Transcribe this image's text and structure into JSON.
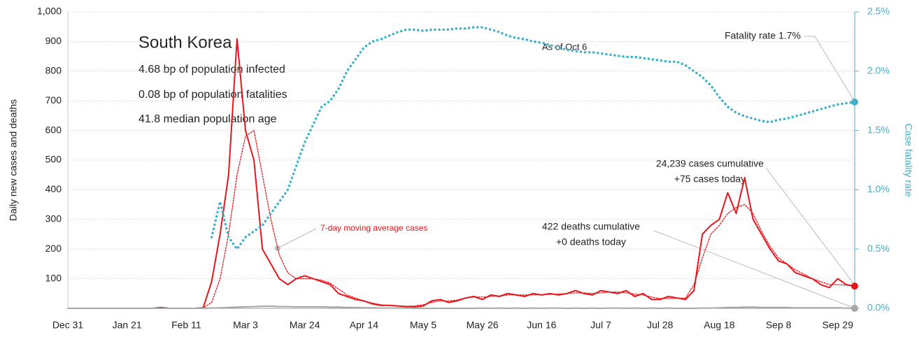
{
  "chart_data": {
    "type": "line",
    "title": "South Korea",
    "subtitle": [
      "4.68 bp of population infected",
      "0.08 bp of population fatalities",
      "41.8 median population age"
    ],
    "note": "As of Oct 6",
    "annotations": [
      "Fatality rate 1.7%",
      "24,239 cases cumulative",
      "+75 cases today",
      "422 deaths cumulative",
      "+0 deaths today"
    ],
    "ylabel": "Daily new cases and deaths",
    "y2label": "Case fatality rate",
    "categories": [
      "Dec 31",
      null,
      null,
      null,
      null,
      null,
      null,
      "Jan 21",
      null,
      null,
      null,
      null,
      null,
      null,
      "Feb 11",
      null,
      null,
      null,
      null,
      null,
      null,
      "Mar 3",
      null,
      null,
      null,
      null,
      null,
      null,
      "Mar 24",
      null,
      null,
      null,
      null,
      null,
      null,
      "Apr 14",
      null,
      null,
      null,
      null,
      null,
      null,
      "May 5",
      null,
      null,
      null,
      null,
      null,
      null,
      "May 26",
      null,
      null,
      null,
      null,
      null,
      null,
      "Jun 16",
      null,
      null,
      null,
      null,
      null,
      null,
      "Jul 7",
      null,
      null,
      null,
      null,
      null,
      null,
      "Jul 28",
      null,
      null,
      null,
      null,
      null,
      null,
      "Aug 18",
      null,
      null,
      null,
      null,
      null,
      null,
      "Sep 8",
      null,
      null,
      null,
      null,
      null,
      null,
      "Sep 29",
      null,
      null
    ],
    "series": [
      {
        "color": "#e8141b",
        "style": "solid",
        "values": [
          0,
          0,
          0,
          0,
          0,
          0,
          0,
          0,
          0,
          0,
          0,
          3,
          0,
          0,
          0,
          0,
          2,
          90,
          250,
          450,
          909,
          600,
          500,
          200,
          150,
          100,
          80,
          100,
          110,
          100,
          90,
          80,
          50,
          40,
          30,
          25,
          15,
          10,
          10,
          8,
          6,
          5,
          8,
          25,
          30,
          20,
          25,
          35,
          40,
          30,
          45,
          40,
          50,
          45,
          40,
          50,
          45,
          50,
          45,
          50,
          60,
          50,
          45,
          60,
          55,
          50,
          60,
          40,
          50,
          30,
          30,
          40,
          35,
          30,
          60,
          250,
          280,
          300,
          390,
          320,
          440,
          300,
          250,
          200,
          160,
          150,
          120,
          110,
          100,
          80,
          70,
          100,
          80,
          75
        ]
      },
      {
        "name": "7-day moving average cases",
        "color": "#e8141b",
        "style": "dotted",
        "values": [
          0,
          0,
          0,
          0,
          0,
          0,
          0,
          0,
          0,
          0,
          0,
          1,
          1,
          1,
          0,
          0,
          1,
          20,
          100,
          250,
          450,
          580,
          600,
          450,
          300,
          180,
          120,
          100,
          100,
          100,
          95,
          85,
          65,
          45,
          35,
          25,
          18,
          12,
          10,
          8,
          7,
          8,
          12,
          20,
          25,
          25,
          28,
          35,
          38,
          38,
          40,
          42,
          45,
          45,
          45,
          45,
          46,
          47,
          48,
          50,
          52,
          52,
          50,
          52,
          55,
          55,
          52,
          48,
          45,
          38,
          33,
          33,
          34,
          35,
          80,
          170,
          250,
          280,
          320,
          340,
          350,
          320,
          260,
          210,
          170,
          150,
          130,
          115,
          100,
          90,
          80,
          80,
          78,
          75
        ]
      },
      {
        "color": "#a6a6a6",
        "style": "solid",
        "values": [
          0,
          0,
          0,
          0,
          0,
          0,
          0,
          0,
          0,
          0,
          0,
          0,
          0,
          0,
          0,
          0,
          0,
          1,
          2,
          3,
          4,
          5,
          6,
          7,
          7,
          6,
          6,
          5,
          5,
          5,
          5,
          4,
          4,
          3,
          3,
          2,
          2,
          1,
          1,
          1,
          1,
          0,
          0,
          0,
          0,
          0,
          0,
          0,
          0,
          1,
          0,
          1,
          0,
          1,
          0,
          1,
          0,
          1,
          1,
          0,
          1,
          0,
          1,
          0,
          1,
          1,
          0,
          1,
          0,
          1,
          0,
          1,
          0,
          0,
          0,
          1,
          1,
          2,
          3,
          3,
          4,
          4,
          3,
          3,
          3,
          3,
          2,
          2,
          2,
          2,
          2,
          2,
          1,
          0
        ]
      },
      {
        "color": "#41b0cc",
        "style": "dotted",
        "axis": "y2",
        "values": [
          null,
          null,
          null,
          null,
          null,
          null,
          null,
          null,
          null,
          null,
          null,
          null,
          null,
          null,
          null,
          null,
          null,
          0.6,
          0.9,
          0.6,
          0.5,
          0.6,
          0.65,
          0.7,
          0.8,
          0.9,
          1.0,
          1.2,
          1.4,
          1.55,
          1.7,
          1.75,
          1.85,
          2.0,
          2.1,
          2.2,
          2.25,
          2.27,
          2.3,
          2.33,
          2.35,
          2.35,
          2.34,
          2.35,
          2.35,
          2.35,
          2.36,
          2.36,
          2.37,
          2.37,
          2.35,
          2.33,
          2.3,
          2.28,
          2.27,
          2.25,
          2.24,
          2.22,
          2.2,
          2.18,
          2.17,
          2.16,
          2.16,
          2.15,
          2.14,
          2.13,
          2.12,
          2.12,
          2.11,
          2.1,
          2.09,
          2.08,
          2.08,
          2.05,
          2.0,
          1.95,
          1.88,
          1.78,
          1.7,
          1.65,
          1.62,
          1.6,
          1.58,
          1.57,
          1.59,
          1.6,
          1.62,
          1.64,
          1.66,
          1.68,
          1.7,
          1.72,
          1.73,
          1.74
        ]
      }
    ],
    "ylim": [
      0,
      1000
    ],
    "yticks": [
      100,
      200,
      300,
      400,
      500,
      600,
      700,
      800,
      900,
      {
        "value": 1000,
        "label": "1,000"
      }
    ],
    "y2lim": [
      0,
      2.5
    ],
    "y2ticks": [
      {
        "value": 0,
        "label": "0.0%"
      },
      {
        "value": 0.5,
        "label": "0.5%"
      },
      {
        "value": 1,
        "label": "1.0%"
      },
      {
        "value": 1.5,
        "label": "1.5%"
      },
      {
        "value": 2,
        "label": "2.0%"
      },
      {
        "value": 2.5,
        "label": "2.5%"
      }
    ],
    "grid": true
  }
}
